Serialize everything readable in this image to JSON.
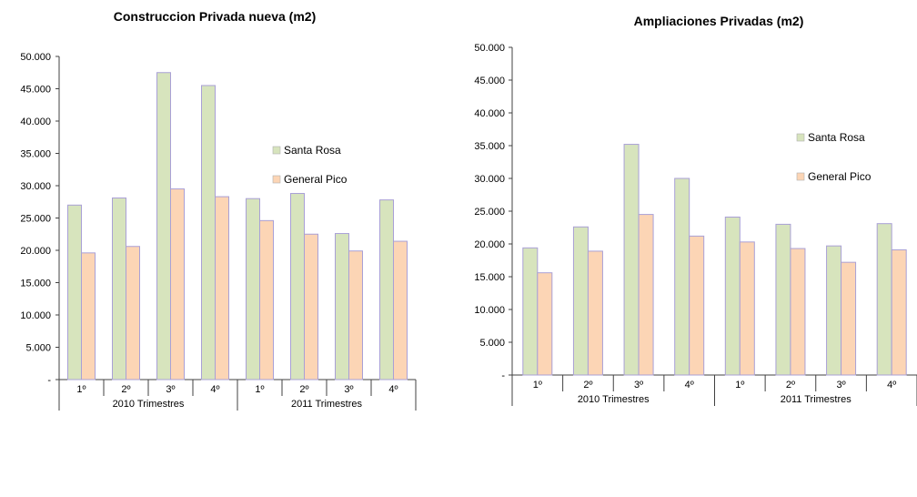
{
  "chart_data": [
    {
      "type": "bar",
      "title": "Construccion Privada nueva (m2)",
      "quarters": [
        "1º",
        "2º",
        "3º",
        "4º",
        "1º",
        "2º",
        "3º",
        "4º"
      ],
      "groups": [
        "2010 Trimestres",
        "2011 Trimestres"
      ],
      "ylim": [
        0,
        50000
      ],
      "yticks": [
        "-",
        "5.000",
        "10.000",
        "15.000",
        "20.000",
        "25.000",
        "30.000",
        "35.000",
        "40.000",
        "45.000",
        "50.000"
      ],
      "legend_position": "right",
      "series": [
        {
          "name": "Santa Rosa",
          "color": "#d7e4bd",
          "values": [
            27000,
            28100,
            47500,
            45500,
            28000,
            28800,
            22600,
            27800
          ]
        },
        {
          "name": "General  Pico",
          "color": "#fcd5b5",
          "values": [
            19600,
            20600,
            29500,
            28300,
            24600,
            22500,
            19900,
            21400
          ]
        }
      ]
    },
    {
      "type": "bar",
      "title": "Ampliaciones Privadas (m2)",
      "quarters": [
        "1º",
        "2º",
        "3º",
        "4º",
        "1º",
        "2º",
        "3º",
        "4º"
      ],
      "groups": [
        "2010 Trimestres",
        "2011 Trimestres"
      ],
      "ylim": [
        0,
        50000
      ],
      "yticks": [
        "-",
        "5.000",
        "10.000",
        "15.000",
        "20.000",
        "25.000",
        "30.000",
        "35.000",
        "40.000",
        "45.000",
        "50.000"
      ],
      "legend_position": "right",
      "series": [
        {
          "name": "Santa Rosa",
          "color": "#d7e4bd",
          "values": [
            19400,
            22600,
            35200,
            30000,
            24100,
            23000,
            19700,
            23100
          ]
        },
        {
          "name": "General  Pico",
          "color": "#fcd5b5",
          "values": [
            15600,
            18900,
            24500,
            21200,
            20300,
            19300,
            17200,
            19100
          ]
        }
      ]
    }
  ],
  "bar_stroke": "#a9a0d6"
}
